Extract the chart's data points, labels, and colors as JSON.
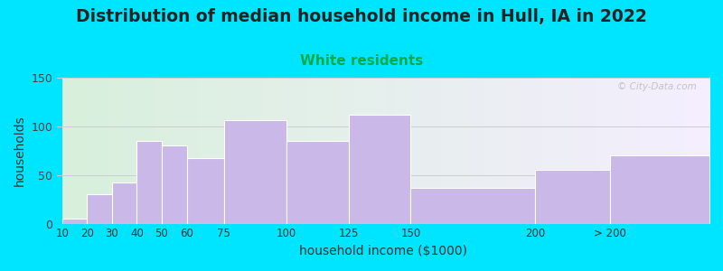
{
  "title": "Distribution of median household income in Hull, IA in 2022",
  "subtitle": "White residents",
  "xlabel": "household income ($1000)",
  "ylabel": "households",
  "title_fontsize": 13.5,
  "subtitle_fontsize": 11,
  "subtitle_color": "#00aa44",
  "bar_color": "#c9b8e8",
  "bar_edge_color": "#ffffff",
  "background_outer": "#00e5ff",
  "background_inner_left": "#d8f0dc",
  "background_inner_right": "#f5eeff",
  "bin_edges": [
    10,
    20,
    30,
    40,
    50,
    60,
    75,
    100,
    125,
    150,
    200,
    230,
    270
  ],
  "values": [
    5,
    30,
    42,
    85,
    80,
    67,
    106,
    85,
    112,
    37,
    55,
    70
  ],
  "ylim": [
    0,
    150
  ],
  "yticks": [
    0,
    50,
    100,
    150
  ],
  "watermark": "© City-Data.com"
}
